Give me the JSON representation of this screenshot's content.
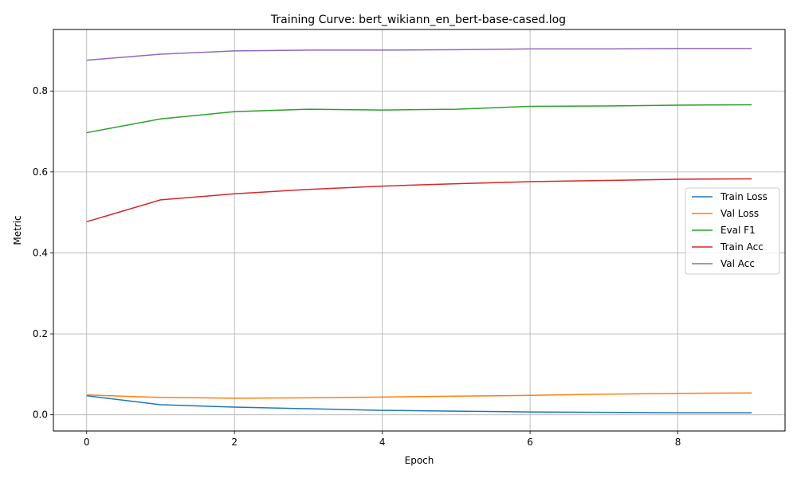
{
  "chart_data": {
    "type": "line",
    "title": "Training Curve: bert_wikiann_en_bert-base-cased.log",
    "xlabel": "Epoch",
    "ylabel": "Metric",
    "xlim": [
      -0.45,
      9.45
    ],
    "ylim": [
      -0.04,
      0.952
    ],
    "xticks": [
      0,
      2,
      4,
      6,
      8
    ],
    "yticks": [
      0.0,
      0.2,
      0.4,
      0.6,
      0.8
    ],
    "grid": true,
    "legend_position": "center-right",
    "x": [
      0,
      1,
      2,
      3,
      4,
      5,
      6,
      7,
      8,
      9
    ],
    "series": [
      {
        "name": "Train Loss",
        "color": "#1f77b4",
        "values": [
          0.047,
          0.025,
          0.019,
          0.015,
          0.011,
          0.009,
          0.007,
          0.006,
          0.005,
          0.005
        ]
      },
      {
        "name": "Val Loss",
        "color": "#ff7f0e",
        "values": [
          0.049,
          0.043,
          0.041,
          0.042,
          0.044,
          0.046,
          0.048,
          0.051,
          0.053,
          0.054
        ]
      },
      {
        "name": "Eval F1",
        "color": "#2ca02c",
        "values": [
          0.697,
          0.731,
          0.749,
          0.755,
          0.753,
          0.755,
          0.762,
          0.763,
          0.765,
          0.766
        ]
      },
      {
        "name": "Train Acc",
        "color": "#d62728",
        "values": [
          0.477,
          0.531,
          0.546,
          0.557,
          0.565,
          0.571,
          0.576,
          0.579,
          0.582,
          0.583
        ]
      },
      {
        "name": "Val Acc",
        "color": "#9467bd",
        "values": [
          0.876,
          0.891,
          0.899,
          0.901,
          0.901,
          0.902,
          0.904,
          0.904,
          0.905,
          0.905
        ]
      }
    ]
  }
}
